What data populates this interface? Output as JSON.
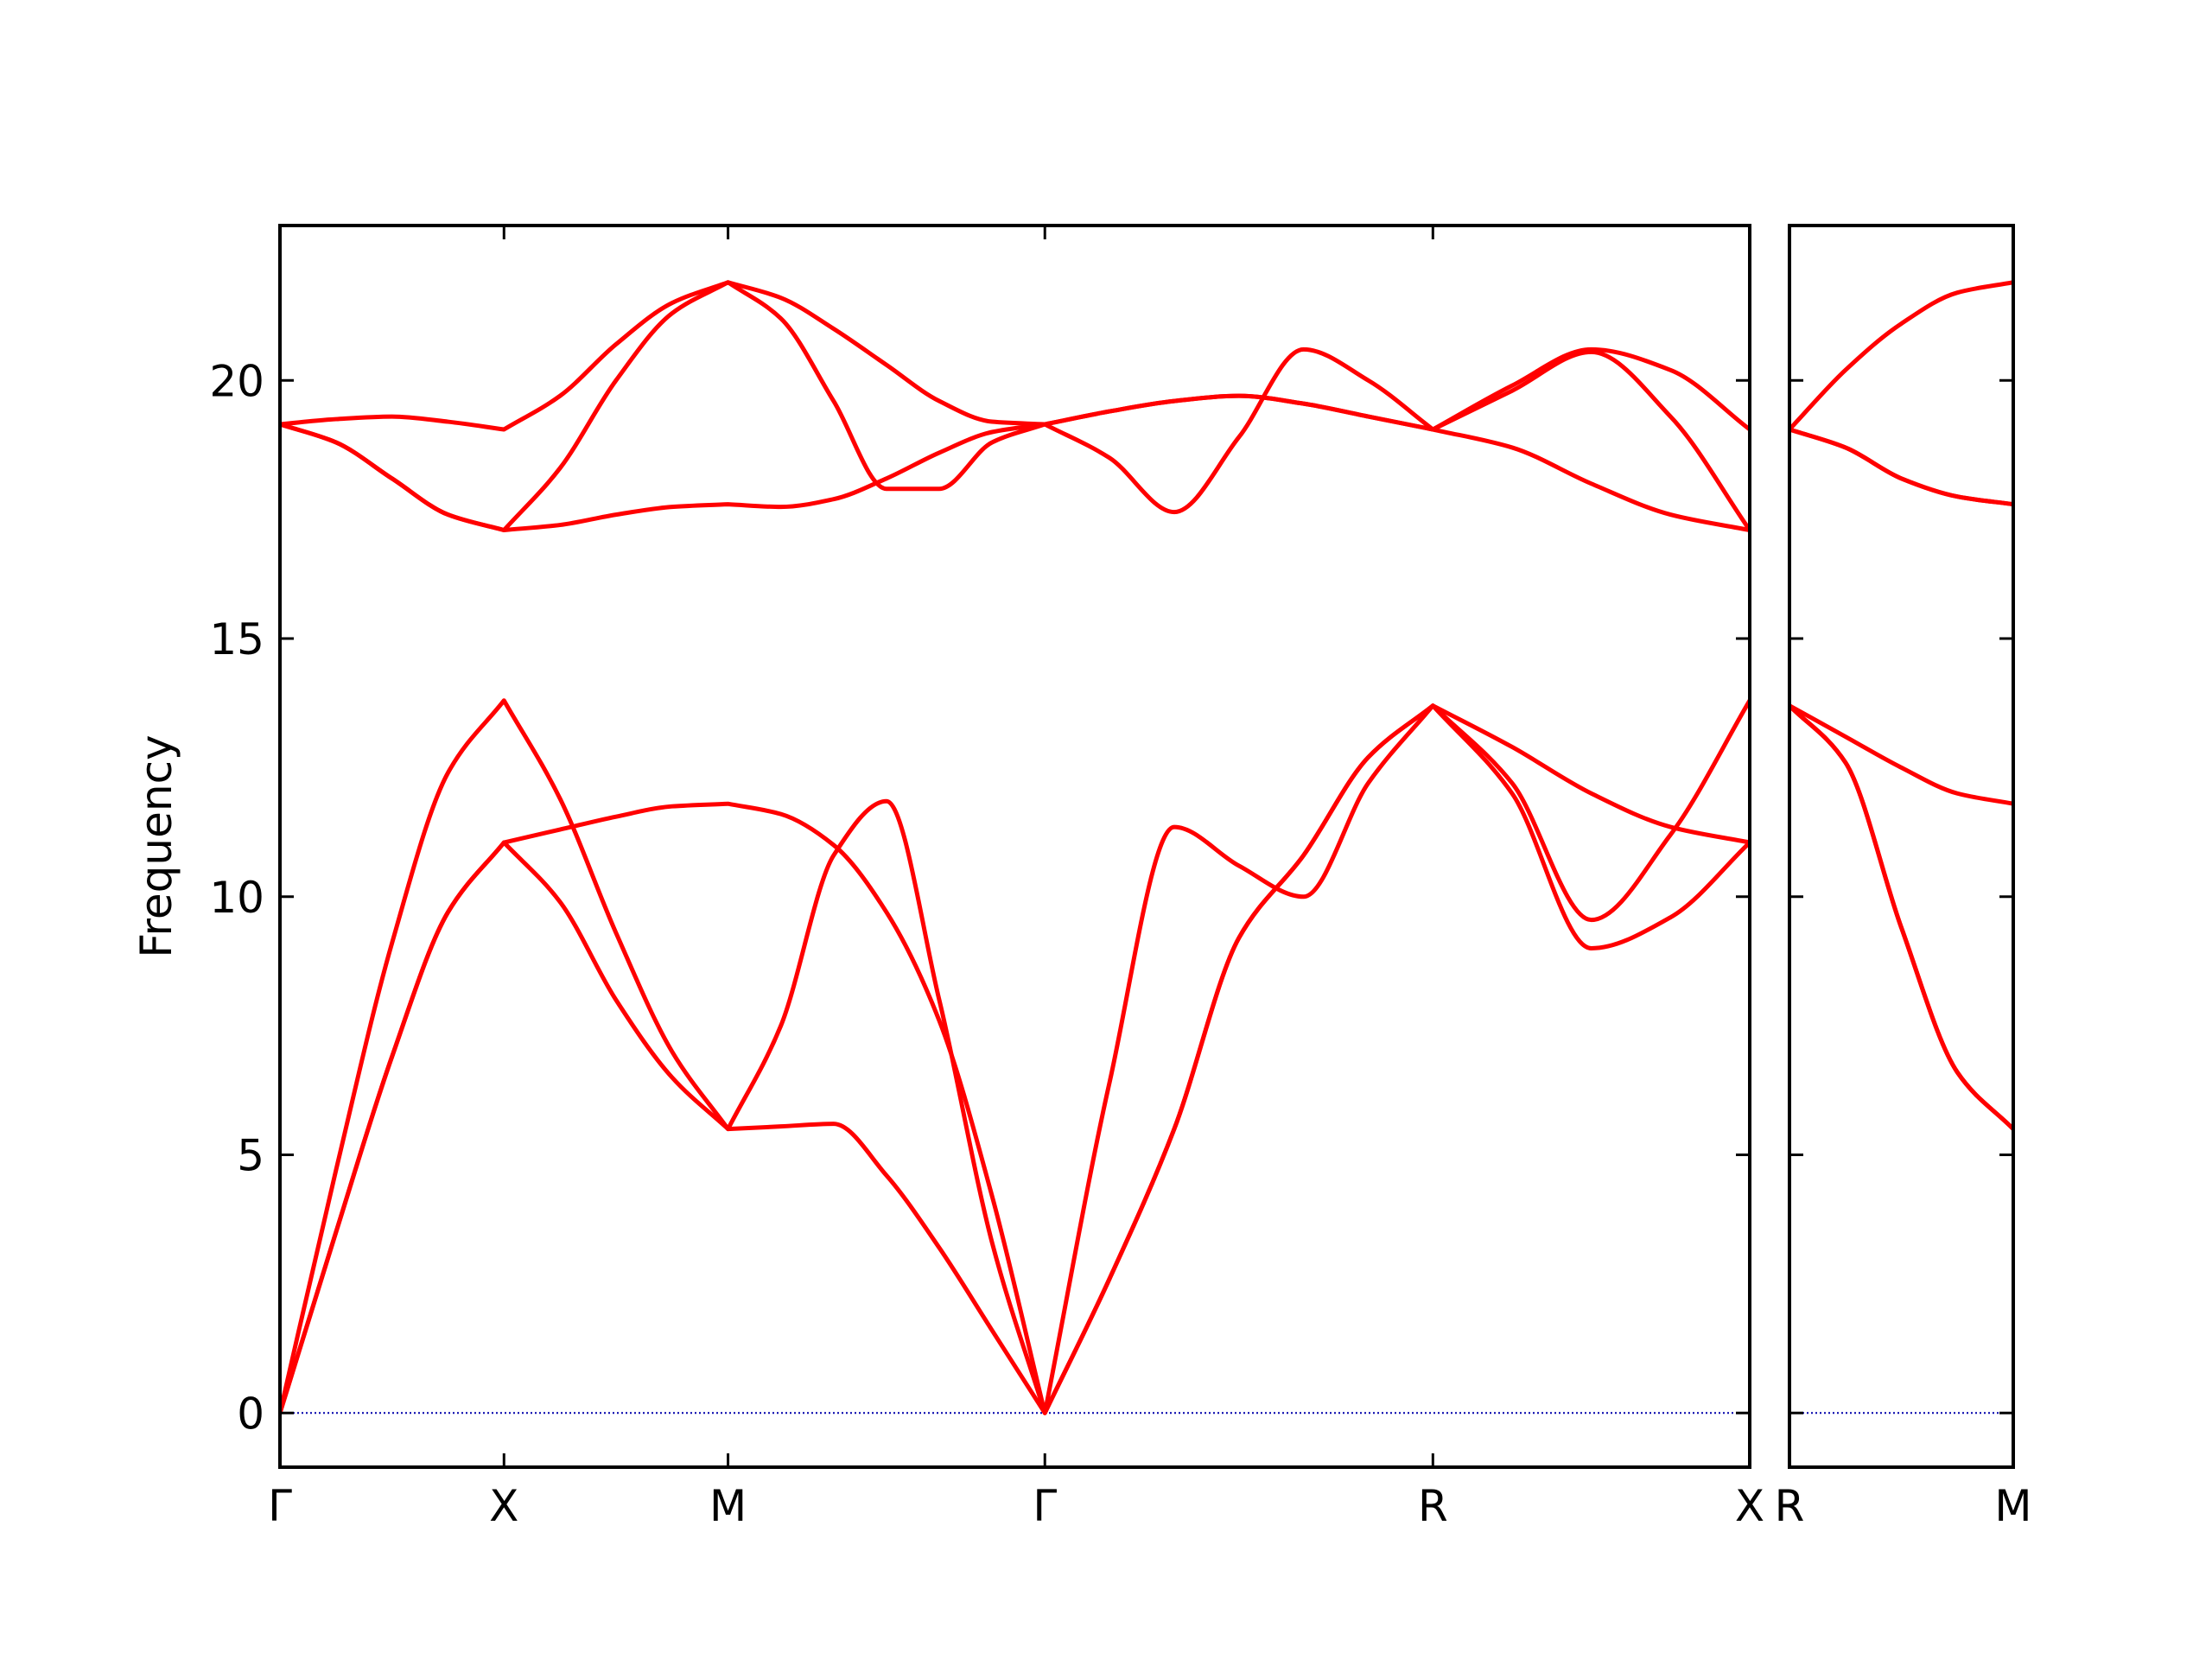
{
  "chart_data": [
    {
      "type": "line",
      "ylabel": "Frequency",
      "color": "#ff0000",
      "x": [
        0,
        0.125,
        0.25,
        0.375,
        0.5,
        0.625,
        0.75,
        0.875,
        1.0,
        1.1179,
        1.2357,
        1.3536,
        1.4714,
        1.5893,
        1.7071,
        1.8514,
        1.9958,
        2.1401,
        2.2844,
        2.4288,
        2.5731,
        2.7499,
        2.9266,
        3.1034,
        3.2802
      ],
      "series": [
        {
          "values": [
            0,
            3.5,
            6.9,
            9.7,
            11.05,
            9.9,
            8.0,
            6.5,
            5.5,
            5.55,
            5.6,
            4.6,
            3.2,
            1.6,
            0,
            2.6,
            5.5,
            9.2,
            10.8,
            12.7,
            13.7,
            12.0,
            9.0,
            9.6,
            11.05
          ]
        },
        {
          "values": [
            0,
            3.5,
            6.9,
            9.7,
            11.05,
            11.3,
            11.55,
            11.75,
            11.8,
            11.6,
            11.0,
            9.7,
            7.6,
            4.2,
            0,
            2.6,
            5.5,
            9.2,
            10.8,
            12.7,
            13.7,
            12.9,
            12.0,
            11.35,
            11.05
          ]
        },
        {
          "values": [
            0,
            4.7,
            9.1,
            12.4,
            13.8,
            11.9,
            9.3,
            7.0,
            5.5,
            7.5,
            10.8,
            11.85,
            8.0,
            3.3,
            0,
            6.4,
            11.35,
            10.6,
            10.0,
            12.2,
            13.7,
            12.2,
            9.55,
            11.2,
            13.8
          ]
        },
        {
          "values": [
            19.15,
            18.8,
            18.1,
            17.4,
            17.1,
            17.2,
            17.4,
            17.55,
            17.6,
            17.55,
            17.7,
            18.1,
            18.6,
            19.0,
            19.15,
            18.5,
            17.45,
            18.9,
            20.6,
            20.0,
            19.05,
            18.7,
            18.0,
            17.4,
            17.1
          ]
        },
        {
          "values": [
            19.15,
            18.8,
            18.1,
            17.4,
            17.1,
            18.3,
            20.0,
            21.3,
            21.9,
            21.2,
            19.6,
            17.9,
            17.9,
            18.8,
            19.15,
            19.4,
            19.6,
            19.7,
            19.55,
            19.3,
            19.05,
            19.8,
            20.55,
            19.3,
            17.1
          ]
        },
        {
          "values": [
            19.15,
            19.25,
            19.3,
            19.2,
            19.05,
            19.7,
            20.7,
            21.5,
            21.9,
            21.6,
            21.0,
            20.3,
            19.6,
            19.2,
            19.15,
            19.4,
            19.6,
            19.7,
            19.55,
            19.3,
            19.05,
            19.9,
            20.6,
            20.2,
            19.05
          ]
        }
      ],
      "xlim": [
        0,
        3.2802
      ],
      "xticks": [
        {
          "value": 0,
          "label": "Γ"
        },
        {
          "value": 0.5,
          "label": "X"
        },
        {
          "value": 1.0,
          "label": "M"
        },
        {
          "value": 1.7071,
          "label": "Γ"
        },
        {
          "value": 2.5731,
          "label": "R"
        },
        {
          "value": 3.2802,
          "label": "X"
        }
      ],
      "ylim": [
        -1.05,
        23.0
      ],
      "yticks": [
        0,
        5,
        10,
        15,
        20
      ],
      "show_ytick_labels": true,
      "zero_line": {
        "value": 0,
        "color": "#0000aa"
      }
    },
    {
      "type": "line",
      "color": "#ff0000",
      "x": [
        0,
        0.125,
        0.25,
        0.375,
        0.5
      ],
      "series": [
        {
          "values": [
            13.7,
            12.6,
            9.4,
            6.6,
            5.5
          ]
        },
        {
          "values": [
            13.7,
            12.6,
            9.4,
            6.6,
            5.5
          ]
        },
        {
          "values": [
            13.7,
            13.1,
            12.5,
            12.0,
            11.8
          ]
        },
        {
          "values": [
            19.05,
            18.7,
            18.1,
            17.75,
            17.6
          ]
        },
        {
          "values": [
            19.05,
            18.7,
            18.1,
            17.75,
            17.6
          ]
        },
        {
          "values": [
            19.05,
            20.2,
            21.1,
            21.7,
            21.9
          ]
        }
      ],
      "xlim": [
        0,
        0.5
      ],
      "xticks": [
        {
          "value": 0,
          "label": "R"
        },
        {
          "value": 0.5,
          "label": "M"
        }
      ],
      "ylim": [
        -1.05,
        23.0
      ],
      "yticks": [
        0,
        5,
        10,
        15,
        20
      ],
      "show_ytick_labels": false,
      "zero_line": {
        "value": 0,
        "color": "#0000aa"
      }
    }
  ]
}
